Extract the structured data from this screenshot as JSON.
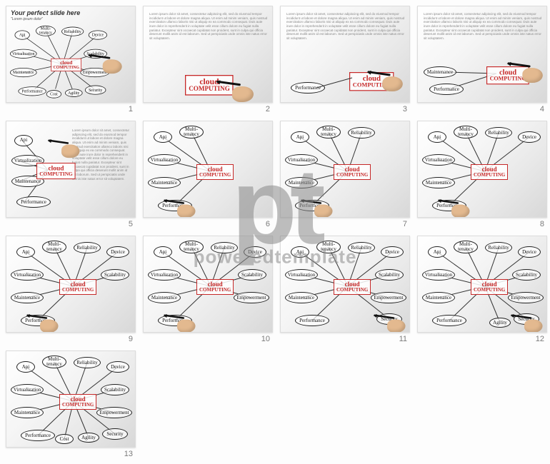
{
  "watermark": {
    "big": "pt",
    "small": "poweredtemplate"
  },
  "center": {
    "l1": "cloud",
    "l2": "COMPUTING"
  },
  "nodes": {
    "api": "Api",
    "multi": "Multi-\ntenancy",
    "reliab": "Reliability",
    "device": "Device",
    "virt": "Virtualization",
    "scal": "Scalability",
    "maint": "Maintenance",
    "empow": "Empowerment",
    "perf": "Performance",
    "agil": "Agility",
    "sec": "Security",
    "cost": "Cost"
  },
  "slide1": {
    "title": "Your perfect slide here",
    "subtitle": "\"Lorem ipsum dolor\""
  },
  "lorem": "Lorem ipsum dolor sit amet, consectetur adipiscing elit, sed do eiusmod tempor incididunt ut labore et dolore magna aliqua. Ut enim ad minim veniam, quis nostrud exercitation ullamco laboris nisi ut aliquip ex ea commodo consequat. Duis aute irure dolor in reprehenderit in voluptate velit esse cillum dolore eu fugiat nulla pariatur. Excepteur sint occaecat cupidatat non proident, sunt in culpa qui officia deserunt mollit anim id est laborum. Sed ut perspiciatis unde omnis iste natus error sit voluptatem.",
  "slides": [
    {
      "n": 1
    },
    {
      "n": 2
    },
    {
      "n": 3
    },
    {
      "n": 4
    },
    {
      "n": 5
    },
    {
      "n": 6
    },
    {
      "n": 7
    },
    {
      "n": 8
    },
    {
      "n": 9
    },
    {
      "n": 10
    },
    {
      "n": 11
    },
    {
      "n": 12
    },
    {
      "n": 13
    }
  ],
  "colors": {
    "accent": "#c62828",
    "ink": "#222222",
    "bg_light": "#ffffff",
    "bg_shade": "#d8d8d8",
    "text_muted": "#888888"
  }
}
